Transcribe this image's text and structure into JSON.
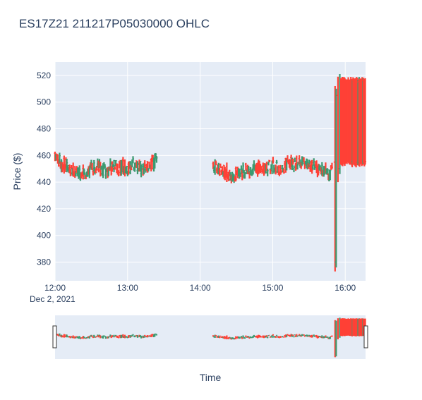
{
  "chart_data": {
    "type": "ohlc",
    "title": "ES17Z21  211217P05030000 OHLC",
    "xlabel": "Time",
    "ylabel": "Price ($)",
    "x_date_label": "Dec 2, 2021",
    "x_ticks": [
      "12:00",
      "13:00",
      "14:00",
      "15:00",
      "16:00"
    ],
    "x_tick_hours": [
      12,
      13,
      14,
      15,
      16
    ],
    "x_range_hours": [
      12.0,
      16.28
    ],
    "y_ticks": [
      380,
      400,
      420,
      440,
      460,
      480,
      500,
      520
    ],
    "ylim": [
      366,
      530
    ],
    "grid": true,
    "rangeslider": true,
    "colors": {
      "increasing": "#3d9970",
      "decreasing": "#ff4136",
      "plot_bg": "#e5ecf6"
    },
    "segments": [
      {
        "start": "12:00",
        "end": "13:25",
        "points": [
          [
            12.0,
            459
          ],
          [
            12.05,
            456
          ],
          [
            12.1,
            454
          ],
          [
            12.15,
            452
          ],
          [
            12.2,
            451
          ],
          [
            12.25,
            450
          ],
          [
            12.3,
            448
          ],
          [
            12.35,
            447
          ],
          [
            12.4,
            447
          ],
          [
            12.45,
            449
          ],
          [
            12.5,
            450
          ],
          [
            12.55,
            452
          ],
          [
            12.6,
            451
          ],
          [
            12.65,
            449
          ],
          [
            12.7,
            448
          ],
          [
            12.75,
            450
          ],
          [
            12.8,
            452
          ],
          [
            12.85,
            452
          ],
          [
            12.9,
            451
          ],
          [
            12.95,
            452
          ],
          [
            13.0,
            451
          ],
          [
            13.05,
            452
          ],
          [
            13.1,
            453
          ],
          [
            13.15,
            452
          ],
          [
            13.2,
            451
          ],
          [
            13.25,
            452
          ],
          [
            13.3,
            453
          ],
          [
            13.35,
            454
          ],
          [
            13.4,
            456
          ]
        ]
      },
      {
        "start": "14:10",
        "end": "15:55",
        "points": [
          [
            14.18,
            452
          ],
          [
            14.23,
            450
          ],
          [
            14.28,
            449
          ],
          [
            14.33,
            448
          ],
          [
            14.38,
            447
          ],
          [
            14.43,
            446
          ],
          [
            14.48,
            446
          ],
          [
            14.53,
            447
          ],
          [
            14.58,
            448
          ],
          [
            14.63,
            449
          ],
          [
            14.68,
            448
          ],
          [
            14.73,
            449
          ],
          [
            14.78,
            450
          ],
          [
            14.83,
            451
          ],
          [
            14.88,
            450
          ],
          [
            14.93,
            451
          ],
          [
            14.98,
            452
          ],
          [
            15.03,
            451
          ],
          [
            15.08,
            450
          ],
          [
            15.13,
            451
          ],
          [
            15.18,
            453
          ],
          [
            15.23,
            454
          ],
          [
            15.28,
            455
          ],
          [
            15.33,
            454
          ],
          [
            15.38,
            453
          ],
          [
            15.43,
            454
          ],
          [
            15.48,
            453
          ],
          [
            15.53,
            452
          ],
          [
            15.58,
            451
          ],
          [
            15.63,
            450
          ],
          [
            15.68,
            449
          ],
          [
            15.73,
            448
          ],
          [
            15.78,
            445
          ],
          [
            15.82,
            448
          ]
        ]
      }
    ],
    "spikes": [
      {
        "x": 15.86,
        "open": 455,
        "high": 512,
        "low": 373,
        "close": 380
      },
      {
        "x": 15.875,
        "open": 380,
        "high": 510,
        "low": 376,
        "close": 505
      },
      {
        "x": 15.9,
        "open": 505,
        "high": 519,
        "low": 440,
        "close": 450
      },
      {
        "x": 15.925,
        "open": 450,
        "high": 521,
        "low": 446,
        "close": 515
      }
    ],
    "late_range": {
      "start": 15.94,
      "end": 16.28,
      "high": 519,
      "low": 451
    }
  }
}
